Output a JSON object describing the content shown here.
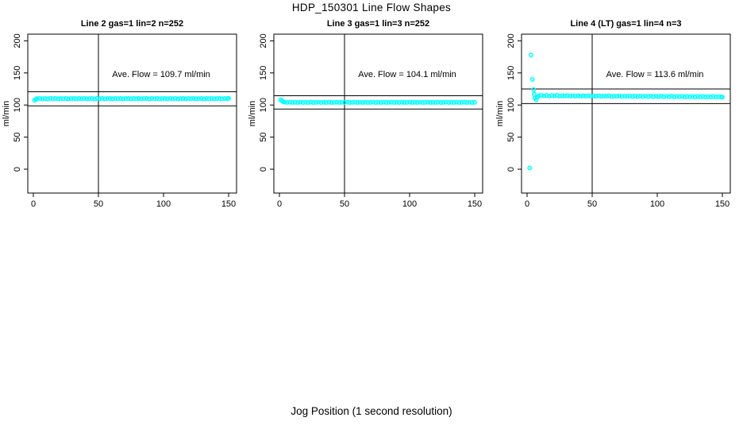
{
  "page_title": "HDP_150301  Line Flow Shapes",
  "x_axis_label": "Jog Position (1 second resolution)",
  "colors": {
    "points": "#00FFFF",
    "axis": "#000000",
    "text": "#000000",
    "background": "#FFFFFF"
  },
  "chart_data": [
    {
      "type": "scatter",
      "title": "Line 2 gas=1 lin=2 n=252",
      "ylabel": "ml/min",
      "annotation": "Ave. Flow =  109.7   ml/min",
      "ave_flow_ml_min": 109.7,
      "n": 252,
      "x_ticks": [
        0,
        50,
        100,
        150
      ],
      "y_ticks": [
        0,
        50,
        100,
        150,
        200
      ],
      "xlim": [
        -4,
        156
      ],
      "ylim": [
        -37,
        211
      ],
      "vline_x": 50,
      "hlines": [
        120.7,
        98.7
      ],
      "grid": false,
      "points": [
        [
          1,
          107.6
        ],
        [
          2,
          108.9
        ],
        [
          3,
          109.9
        ],
        [
          5,
          110.2
        ],
        [
          7,
          109.8
        ],
        [
          9,
          110.1
        ],
        [
          11,
          109.7
        ],
        [
          13,
          110.2
        ],
        [
          15,
          109.9
        ],
        [
          17,
          110.3
        ],
        [
          19,
          109.8
        ],
        [
          21,
          110.1
        ],
        [
          23,
          109.9
        ],
        [
          25,
          110.2
        ],
        [
          27,
          109.7
        ],
        [
          29,
          110.0
        ],
        [
          31,
          110.2
        ],
        [
          33,
          109.8
        ],
        [
          35,
          110.1
        ],
        [
          37,
          109.9
        ],
        [
          39,
          110.2
        ],
        [
          41,
          109.8
        ],
        [
          43,
          110.0
        ],
        [
          45,
          110.2
        ],
        [
          47,
          109.7
        ],
        [
          49,
          110.1
        ],
        [
          51,
          109.9
        ],
        [
          53,
          110.2
        ],
        [
          55,
          109.8
        ],
        [
          57,
          110.0
        ],
        [
          59,
          110.2
        ],
        [
          61,
          109.8
        ],
        [
          63,
          110.1
        ],
        [
          65,
          109.9
        ],
        [
          67,
          110.2
        ],
        [
          69,
          109.7
        ],
        [
          71,
          110.0
        ],
        [
          73,
          110.2
        ],
        [
          75,
          109.8
        ],
        [
          77,
          110.1
        ],
        [
          79,
          109.9
        ],
        [
          81,
          110.2
        ],
        [
          83,
          109.8
        ],
        [
          85,
          110.0
        ],
        [
          87,
          110.2
        ],
        [
          89,
          109.7
        ],
        [
          91,
          110.1
        ],
        [
          93,
          109.9
        ],
        [
          95,
          110.2
        ],
        [
          97,
          109.8
        ],
        [
          99,
          110.0
        ],
        [
          101,
          110.2
        ],
        [
          103,
          109.8
        ],
        [
          105,
          110.1
        ],
        [
          107,
          109.9
        ],
        [
          109,
          110.2
        ],
        [
          111,
          109.7
        ],
        [
          113,
          110.0
        ],
        [
          115,
          110.2
        ],
        [
          117,
          109.8
        ],
        [
          119,
          110.1
        ],
        [
          121,
          109.9
        ],
        [
          123,
          110.2
        ],
        [
          125,
          109.8
        ],
        [
          127,
          110.0
        ],
        [
          129,
          110.2
        ],
        [
          131,
          109.7
        ],
        [
          133,
          110.1
        ],
        [
          135,
          109.9
        ],
        [
          137,
          110.2
        ],
        [
          139,
          109.8
        ],
        [
          141,
          110.0
        ],
        [
          143,
          110.2
        ],
        [
          145,
          109.8
        ],
        [
          147,
          110.1
        ],
        [
          149,
          109.9
        ],
        [
          150,
          110.4
        ]
      ]
    },
    {
      "type": "scatter",
      "title": "Line 3 gas=1 lin=3 n=252",
      "ylabel": "ml/min",
      "annotation": "Ave. Flow =  104.1   ml/min",
      "ave_flow_ml_min": 104.1,
      "n": 252,
      "x_ticks": [
        0,
        50,
        100,
        150
      ],
      "y_ticks": [
        0,
        50,
        100,
        150,
        200
      ],
      "xlim": [
        -4,
        156
      ],
      "ylim": [
        -37,
        211
      ],
      "vline_x": 50,
      "hlines": [
        114.5,
        93.7
      ],
      "grid": false,
      "points": [
        [
          1,
          108.2
        ],
        [
          2,
          106.3
        ],
        [
          3,
          105.0
        ],
        [
          4,
          104.4
        ],
        [
          6,
          104.1
        ],
        [
          8,
          104.3
        ],
        [
          10,
          103.9
        ],
        [
          12,
          104.2
        ],
        [
          14,
          104.0
        ],
        [
          16,
          104.3
        ],
        [
          18,
          103.9
        ],
        [
          20,
          104.2
        ],
        [
          22,
          104.0
        ],
        [
          24,
          104.3
        ],
        [
          26,
          103.9
        ],
        [
          28,
          104.1
        ],
        [
          30,
          104.3
        ],
        [
          32,
          103.9
        ],
        [
          34,
          104.2
        ],
        [
          36,
          104.0
        ],
        [
          38,
          104.3
        ],
        [
          40,
          103.9
        ],
        [
          42,
          104.1
        ],
        [
          44,
          104.3
        ],
        [
          46,
          103.9
        ],
        [
          48,
          104.2
        ],
        [
          50,
          104.0
        ],
        [
          52,
          104.3
        ],
        [
          54,
          103.9
        ],
        [
          56,
          104.1
        ],
        [
          58,
          104.3
        ],
        [
          60,
          103.9
        ],
        [
          62,
          104.2
        ],
        [
          64,
          104.0
        ],
        [
          66,
          104.3
        ],
        [
          68,
          103.9
        ],
        [
          70,
          104.1
        ],
        [
          72,
          104.3
        ],
        [
          74,
          103.9
        ],
        [
          76,
          104.2
        ],
        [
          78,
          104.0
        ],
        [
          80,
          104.3
        ],
        [
          82,
          103.9
        ],
        [
          84,
          104.1
        ],
        [
          86,
          104.3
        ],
        [
          88,
          103.9
        ],
        [
          90,
          104.2
        ],
        [
          92,
          104.0
        ],
        [
          94,
          104.3
        ],
        [
          96,
          103.9
        ],
        [
          98,
          104.1
        ],
        [
          100,
          104.3
        ],
        [
          102,
          103.9
        ],
        [
          104,
          104.2
        ],
        [
          106,
          104.0
        ],
        [
          108,
          104.3
        ],
        [
          110,
          103.9
        ],
        [
          112,
          104.1
        ],
        [
          114,
          104.3
        ],
        [
          116,
          103.9
        ],
        [
          118,
          104.2
        ],
        [
          120,
          104.0
        ],
        [
          122,
          104.3
        ],
        [
          124,
          103.9
        ],
        [
          126,
          104.1
        ],
        [
          128,
          104.3
        ],
        [
          130,
          103.9
        ],
        [
          132,
          104.2
        ],
        [
          134,
          104.0
        ],
        [
          136,
          104.3
        ],
        [
          138,
          103.9
        ],
        [
          140,
          104.1
        ],
        [
          142,
          104.3
        ],
        [
          144,
          103.9
        ],
        [
          146,
          104.2
        ],
        [
          148,
          104.0
        ],
        [
          150,
          104.2
        ]
      ]
    },
    {
      "type": "scatter",
      "title": "Line 4 (LT) gas=1 lin=4 n=3",
      "ylabel": "ml/min",
      "annotation": "Ave. Flow =  113.6   ml/min",
      "ave_flow_ml_min": 113.6,
      "n": 3,
      "x_ticks": [
        0,
        50,
        100,
        150
      ],
      "y_ticks": [
        0,
        50,
        100,
        150,
        200
      ],
      "xlim": [
        -4,
        156
      ],
      "ylim": [
        -37,
        211
      ],
      "vline_x": 50,
      "hlines": [
        125.0,
        102.2
      ],
      "grid": false,
      "points": [
        [
          2,
          2
        ],
        [
          3,
          178
        ],
        [
          4,
          140
        ],
        [
          5,
          124
        ],
        [
          5.5,
          117
        ],
        [
          6,
          111
        ],
        [
          7,
          108
        ],
        [
          8,
          112.5
        ],
        [
          9,
          114.6
        ],
        [
          11,
          115.0
        ],
        [
          13,
          114.2
        ],
        [
          15,
          114.9
        ],
        [
          17,
          114.0
        ],
        [
          19,
          114.7
        ],
        [
          21,
          114.3
        ],
        [
          23,
          115.0
        ],
        [
          25,
          113.9
        ],
        [
          27,
          114.5
        ],
        [
          29,
          114.1
        ],
        [
          31,
          114.8
        ],
        [
          33,
          113.8
        ],
        [
          35,
          114.4
        ],
        [
          37,
          114.0
        ],
        [
          39,
          114.6
        ],
        [
          41,
          113.7
        ],
        [
          43,
          114.3
        ],
        [
          45,
          113.9
        ],
        [
          47,
          114.5
        ],
        [
          49,
          113.6
        ],
        [
          51,
          114.2
        ],
        [
          53,
          113.8
        ],
        [
          55,
          114.4
        ],
        [
          57,
          113.5
        ],
        [
          59,
          114.1
        ],
        [
          61,
          113.7
        ],
        [
          63,
          114.3
        ],
        [
          65,
          113.4
        ],
        [
          67,
          114.0
        ],
        [
          69,
          113.6
        ],
        [
          71,
          114.2
        ],
        [
          73,
          113.3
        ],
        [
          75,
          113.9
        ],
        [
          77,
          113.5
        ],
        [
          79,
          114.1
        ],
        [
          81,
          113.2
        ],
        [
          83,
          113.8
        ],
        [
          85,
          113.4
        ],
        [
          87,
          114.0
        ],
        [
          89,
          113.1
        ],
        [
          91,
          113.7
        ],
        [
          93,
          113.3
        ],
        [
          95,
          113.9
        ],
        [
          97,
          113.0
        ],
        [
          99,
          113.6
        ],
        [
          101,
          113.2
        ],
        [
          103,
          113.8
        ],
        [
          105,
          112.9
        ],
        [
          107,
          113.5
        ],
        [
          109,
          113.1
        ],
        [
          111,
          113.7
        ],
        [
          113,
          112.8
        ],
        [
          115,
          113.4
        ],
        [
          117,
          113.0
        ],
        [
          119,
          113.6
        ],
        [
          121,
          112.7
        ],
        [
          123,
          113.3
        ],
        [
          125,
          112.9
        ],
        [
          127,
          113.5
        ],
        [
          129,
          112.6
        ],
        [
          131,
          113.2
        ],
        [
          133,
          112.8
        ],
        [
          135,
          113.4
        ],
        [
          137,
          112.5
        ],
        [
          139,
          113.1
        ],
        [
          141,
          112.7
        ],
        [
          143,
          113.3
        ],
        [
          145,
          112.4
        ],
        [
          147,
          113.0
        ],
        [
          149,
          112.6
        ],
        [
          150,
          112.2
        ]
      ]
    }
  ]
}
